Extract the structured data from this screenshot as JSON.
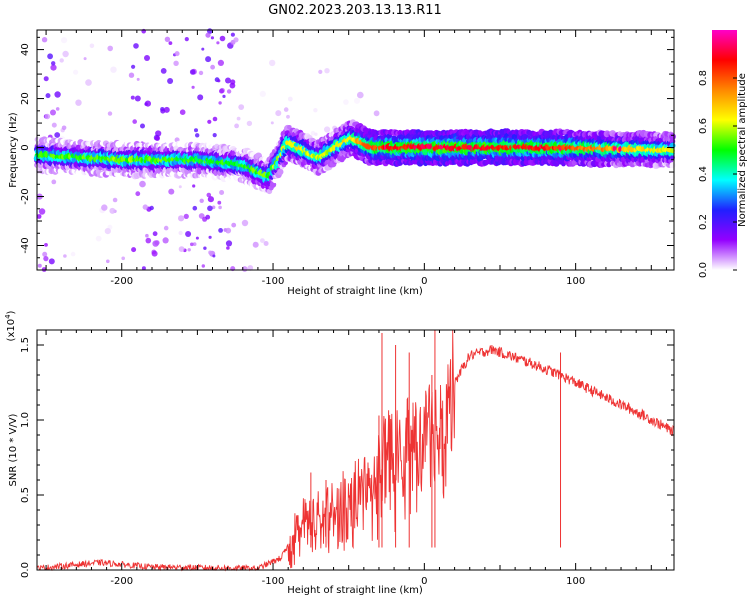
{
  "title": "GN02.2023.203.13.13.R11",
  "chart_data": [
    {
      "type": "heatmap",
      "xlabel": "Height of straight line (km)",
      "ylabel": "Frequency (Hz)",
      "xlim": [
        -256,
        165
      ],
      "ylim": [
        -50,
        48
      ],
      "xticks": [
        -200,
        -100,
        0,
        100
      ],
      "yticks": [
        -40,
        -20,
        0,
        20,
        40
      ],
      "colorbar": {
        "label": "Normalized spectral amplitude",
        "range": [
          0,
          1
        ],
        "ticks": [
          "0.0",
          "0.2",
          "0.4",
          "0.6",
          "0.8"
        ],
        "colormap": [
          "#ffffff",
          "#9400ff",
          "#2020ff",
          "#00ffff",
          "#00ff00",
          "#ffff00",
          "#ff8800",
          "#ff0000",
          "#ff00c8"
        ]
      },
      "ridge": [
        {
          "x": -256,
          "f": -3,
          "amp": 0.45
        },
        {
          "x": -200,
          "f": -5,
          "amp": 0.5
        },
        {
          "x": -150,
          "f": -5,
          "amp": 0.45
        },
        {
          "x": -120,
          "f": -7,
          "amp": 0.45
        },
        {
          "x": -103,
          "f": -12,
          "amp": 0.5
        },
        {
          "x": -90,
          "f": 2,
          "amp": 0.6
        },
        {
          "x": -70,
          "f": -4,
          "amp": 0.55
        },
        {
          "x": -48,
          "f": 4,
          "amp": 0.6
        },
        {
          "x": -35,
          "f": 0,
          "amp": 0.75
        },
        {
          "x": 0,
          "f": 0,
          "amp": 0.85
        },
        {
          "x": 80,
          "f": 0,
          "amp": 0.8
        },
        {
          "x": 165,
          "f": -1,
          "amp": 0.55
        }
      ]
    },
    {
      "type": "line",
      "xlabel": "Height of straight line (km)",
      "ylabel": "SNR (10 * V/V)",
      "y_exponent": "(x10",
      "y_exponent_power": "4",
      "xlim": [
        -256,
        165
      ],
      "ylim": [
        0,
        1.6
      ],
      "xticks": [
        -200,
        -100,
        0,
        100
      ],
      "yticks": [
        "0.0",
        "0.5",
        "1.0",
        "1.5"
      ],
      "color": "#ee3333",
      "envelope": [
        {
          "x": -256,
          "y": 0.01
        },
        {
          "x": -215,
          "y": 0.05
        },
        {
          "x": -180,
          "y": 0.02
        },
        {
          "x": -110,
          "y": 0.01
        },
        {
          "x": -95,
          "y": 0.08
        },
        {
          "x": -80,
          "y": 0.3
        },
        {
          "x": -60,
          "y": 0.35
        },
        {
          "x": -40,
          "y": 0.55
        },
        {
          "x": -25,
          "y": 0.75
        },
        {
          "x": -15,
          "y": 0.8
        },
        {
          "x": 0,
          "y": 0.85
        },
        {
          "x": 10,
          "y": 1.0
        },
        {
          "x": 20,
          "y": 1.25
        },
        {
          "x": 30,
          "y": 1.43
        },
        {
          "x": 45,
          "y": 1.47
        },
        {
          "x": 70,
          "y": 1.38
        },
        {
          "x": 90,
          "y": 1.3
        },
        {
          "x": 120,
          "y": 1.15
        },
        {
          "x": 145,
          "y": 1.03
        },
        {
          "x": 165,
          "y": 0.92
        }
      ],
      "spikes": [
        {
          "x": -75,
          "y": 0.65
        },
        {
          "x": -65,
          "y": 0.6
        },
        {
          "x": -30,
          "y": 1.03
        },
        {
          "x": -28,
          "y": 1.58
        },
        {
          "x": -19,
          "y": 1.5
        },
        {
          "x": -10,
          "y": 1.45
        },
        {
          "x": 5,
          "y": 1.3
        },
        {
          "x": 7,
          "y": 1.6
        },
        {
          "x": 90,
          "y": 1.45
        }
      ]
    }
  ]
}
